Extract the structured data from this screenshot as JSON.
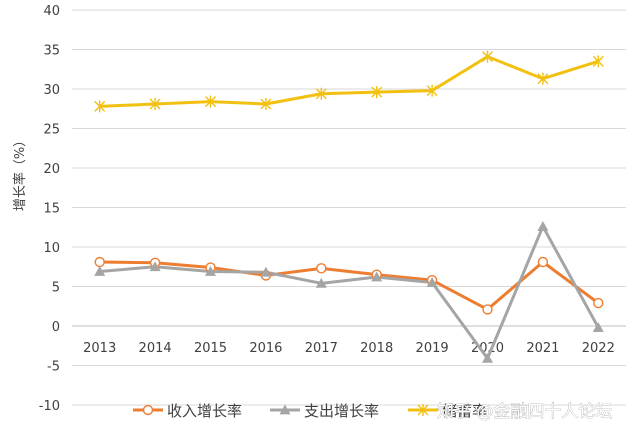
{
  "chart_data": {
    "type": "line",
    "title": "",
    "xlabel": "",
    "ylabel": "增长率（%）",
    "x": [
      "2013",
      "2014",
      "2015",
      "2016",
      "2017",
      "2018",
      "2019",
      "2020",
      "2021",
      "2022"
    ],
    "ylim": [
      -10,
      40
    ],
    "yticks": [
      "-10",
      "-5",
      "0",
      "5",
      "10",
      "15",
      "20",
      "25",
      "30",
      "35",
      "40"
    ],
    "grid": "horizontal",
    "legend": "bottom",
    "series": [
      {
        "name": "收入增长率",
        "color": "#ED7D31",
        "marker": "circle",
        "values": [
          8.1,
          8.0,
          7.4,
          6.4,
          7.3,
          6.5,
          5.8,
          2.1,
          8.1,
          2.9
        ]
      },
      {
        "name": "支出增长率",
        "color": "#A5A5A5",
        "marker": "triangle",
        "values": [
          6.9,
          7.5,
          6.9,
          6.8,
          5.4,
          6.2,
          5.5,
          -4.1,
          12.6,
          -0.2
        ]
      },
      {
        "name": "储蓄率",
        "color": "#F2C010",
        "marker": "star",
        "values": [
          27.8,
          28.1,
          28.4,
          28.1,
          29.4,
          29.6,
          29.8,
          34.1,
          31.3,
          33.5
        ]
      }
    ]
  },
  "watermark": {
    "text": "知乎 @金融四十人论坛"
  }
}
